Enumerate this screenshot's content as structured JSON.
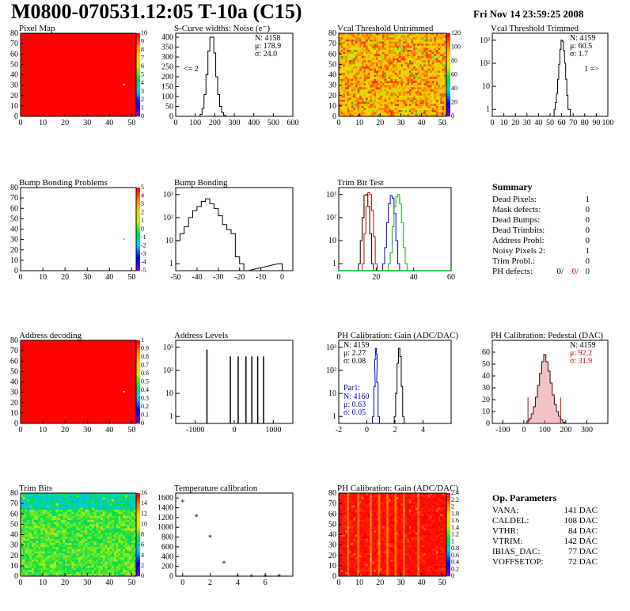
{
  "header": {
    "title": "M0800-070531.12:05 T-10a (C15)",
    "date": "Fri Nov 14 23:59:25 2008"
  },
  "colors": {
    "black": "#000000",
    "red": "#cc0000",
    "blue": "#0000cc",
    "green": "#00bb00",
    "map_red": "#ff0000",
    "bar_bg": "#ffffff"
  },
  "chart_data": [
    {
      "id": "pixel-map",
      "type": "heatmap",
      "title": "Pixel Map",
      "xlim": [
        0,
        52
      ],
      "ylim": [
        0,
        80
      ],
      "xticks": [
        "0",
        "10",
        "20",
        "30",
        "40",
        "50"
      ],
      "yticks": [
        "0",
        "10",
        "20",
        "30",
        "40",
        "50",
        "60",
        "70",
        "80"
      ],
      "fill": "uniform-red",
      "marks": [
        {
          "x": 46,
          "y": 31
        }
      ],
      "colorbar": [
        "0",
        "1",
        "2",
        "3",
        "4",
        "5",
        "6",
        "7",
        "8",
        "9",
        "10"
      ]
    },
    {
      "id": "scurve-noise",
      "type": "line",
      "title": "S-Curve widths: Noise (e⁻)",
      "xlim": [
        0,
        600
      ],
      "ylim": [
        0,
        420
      ],
      "xticks": [
        "0",
        "100",
        "200",
        "300",
        "400",
        "500",
        "600"
      ],
      "yticks": [
        "0",
        "50",
        "100",
        "150",
        "200",
        "250",
        "300",
        "350",
        "400"
      ],
      "stats": {
        "N": "4158",
        "mean": "178.9",
        "sigma": "24.0"
      },
      "annotation": "<= 2",
      "x": [
        120,
        130,
        140,
        150,
        160,
        170,
        180,
        190,
        200,
        210,
        220,
        230,
        240,
        250,
        260
      ],
      "y": [
        0,
        10,
        40,
        110,
        210,
        330,
        400,
        400,
        320,
        200,
        110,
        50,
        20,
        5,
        0
      ]
    },
    {
      "id": "vcal-untrimmed",
      "type": "heatmap",
      "title": "Vcal Threshold Untrimmed",
      "xlim": [
        0,
        52
      ],
      "ylim": [
        0,
        80
      ],
      "xticks": [
        "0",
        "10",
        "20",
        "30",
        "40",
        "50"
      ],
      "yticks": [
        "0",
        "10",
        "20",
        "30",
        "40",
        "50",
        "60",
        "70",
        "80"
      ],
      "fill": "noise-orange",
      "colorbar": [
        "0",
        "20",
        "40",
        "60",
        "80",
        "100",
        "120"
      ]
    },
    {
      "id": "vcal-trimmed",
      "type": "line",
      "title": "Vcal Threshold Trimmed",
      "xlim": [
        0,
        100
      ],
      "ylim_log": [
        0.5,
        2000
      ],
      "log_y": true,
      "xticks": [
        "0",
        "10",
        "20",
        "30",
        "40",
        "50",
        "60",
        "70",
        "80",
        "90",
        "100"
      ],
      "stats": {
        "N": "4159",
        "mean": "60.5",
        "sigma": "1.7"
      },
      "annotation": "1 =>",
      "x": [
        54,
        55,
        56,
        57,
        58,
        59,
        60,
        61,
        62,
        63,
        64,
        65,
        66,
        67
      ],
      "y": [
        1,
        2,
        5,
        20,
        90,
        400,
        1000,
        900,
        350,
        100,
        20,
        4,
        1,
        1
      ]
    },
    {
      "id": "bump-problems",
      "type": "heatmap",
      "title": "Bump Bonding Problems",
      "xlim": [
        0,
        52
      ],
      "ylim": [
        0,
        80
      ],
      "xticks": [
        "0",
        "10",
        "20",
        "30",
        "40",
        "50"
      ],
      "yticks": [
        "0",
        "10",
        "20",
        "30",
        "40",
        "50",
        "60",
        "70",
        "80"
      ],
      "fill": "white",
      "marks": [
        {
          "x": 46,
          "y": 31
        }
      ],
      "colorbar": [
        "-5",
        "-4",
        "-3",
        "-2",
        "-1",
        "0",
        "1",
        "2",
        "3",
        "4",
        "5"
      ]
    },
    {
      "id": "bump-bonding",
      "type": "line",
      "title": "Bump Bonding",
      "xlim": [
        -50,
        5
      ],
      "ylim_log": [
        0.5,
        2000
      ],
      "log_y": true,
      "xticks": [
        "-50",
        "-40",
        "-30",
        "-20",
        "-10",
        "0"
      ],
      "x": [
        -49,
        -47,
        -45,
        -43,
        -41,
        -39,
        -37,
        -35,
        -33,
        -31,
        -29,
        -27,
        -25,
        -23,
        -21,
        -19,
        -17,
        -1
      ],
      "y": [
        10,
        20,
        40,
        100,
        200,
        300,
        500,
        650,
        400,
        250,
        120,
        50,
        30,
        20,
        2,
        1,
        0,
        1
      ]
    },
    {
      "id": "trim-bit-test",
      "type": "line",
      "title": "Trim Bit Test",
      "xlim": [
        0,
        60
      ],
      "ylim_log": [
        0.5,
        2000
      ],
      "log_y": true,
      "xticks": [
        "0",
        "20",
        "40",
        "60"
      ],
      "series": [
        {
          "color": "#000000",
          "x": [
            11,
            12,
            13,
            14,
            15,
            16,
            17,
            18
          ],
          "y": [
            1,
            10,
            100,
            900,
            1000,
            300,
            20,
            1
          ]
        },
        {
          "color": "#cc0000",
          "x": [
            13,
            14,
            15,
            16,
            17,
            18,
            19,
            20
          ],
          "y": [
            1,
            20,
            300,
            1200,
            1000,
            200,
            15,
            1
          ]
        },
        {
          "color": "#0000cc",
          "x": [
            24,
            25,
            26,
            27,
            28,
            29,
            30,
            31,
            32
          ],
          "y": [
            1,
            5,
            60,
            400,
            900,
            700,
            150,
            10,
            1
          ]
        },
        {
          "color": "#00bb00",
          "x": [
            27,
            28,
            29,
            30,
            31,
            32,
            33,
            34,
            35,
            36
          ],
          "y": [
            1,
            3,
            40,
            300,
            800,
            1000,
            400,
            60,
            5,
            1
          ]
        }
      ]
    },
    {
      "id": "address-decoding",
      "type": "heatmap",
      "title": "Address decoding",
      "xlim": [
        0,
        52
      ],
      "ylim": [
        0,
        80
      ],
      "xticks": [
        "0",
        "10",
        "20",
        "30",
        "40",
        "50"
      ],
      "yticks": [
        "0",
        "10",
        "20",
        "30",
        "40",
        "50",
        "60",
        "70",
        "80"
      ],
      "fill": "uniform-red",
      "marks": [
        {
          "x": 46,
          "y": 31
        }
      ],
      "colorbar": [
        "0",
        "0.1",
        "0.2",
        "0.3",
        "0.4",
        "0.5",
        "0.6",
        "0.7",
        "0.8",
        "0.9",
        "1"
      ]
    },
    {
      "id": "address-levels",
      "type": "bar",
      "title": "Address Levels",
      "xlim": [
        -1500,
        1500
      ],
      "ylim_log": [
        0.5,
        2000
      ],
      "log_y": true,
      "xticks": [
        "-1000",
        "0",
        "1000"
      ],
      "x": [
        -700,
        -100,
        100,
        300,
        450,
        600,
        750
      ],
      "y": [
        800,
        400,
        400,
        400,
        400,
        400,
        400
      ]
    },
    {
      "id": "ph-gain",
      "type": "line",
      "title": "PH Calibration: Gain (ADC/DAC)",
      "xlim": [
        -2,
        6
      ],
      "ylim_log": [
        0.5,
        2000
      ],
      "log_y": true,
      "xticks": [
        "-2",
        "0",
        "2",
        "4"
      ],
      "stats": {
        "N": "4159",
        "mean": "2.27",
        "sigma": "0.08"
      },
      "par1": {
        "label": "Par1:",
        "N": "4160",
        "mean": "0.63",
        "sigma": "0.05"
      },
      "series": [
        {
          "color": "#000000",
          "x": [
            2.0,
            2.1,
            2.2,
            2.3,
            2.4,
            2.5,
            2.6
          ],
          "y": [
            1,
            10,
            200,
            900,
            400,
            20,
            1
          ]
        },
        {
          "color": "#0000cc",
          "x": [
            0.45,
            0.55,
            0.6,
            0.65,
            0.7,
            0.75,
            0.85
          ],
          "y": [
            1,
            20,
            300,
            900,
            500,
            30,
            1
          ]
        }
      ]
    },
    {
      "id": "ph-pedestal",
      "type": "line",
      "title": "PH Calibration: Pedestal (DAC)",
      "xlim": [
        -150,
        400
      ],
      "ylim": [
        0,
        70
      ],
      "xticks": [
        "-100",
        "0",
        "100",
        "200",
        "300"
      ],
      "yticks": [
        "0",
        "10",
        "20",
        "30",
        "40",
        "50",
        "60"
      ],
      "stats": {
        "N": "4159",
        "mean": "92.2",
        "sigma": "31.9"
      },
      "x": [
        20,
        30,
        40,
        50,
        60,
        70,
        80,
        90,
        100,
        110,
        120,
        130,
        140,
        150,
        160,
        170,
        180,
        190
      ],
      "y": [
        2,
        4,
        8,
        14,
        22,
        32,
        42,
        52,
        58,
        52,
        44,
        34,
        24,
        16,
        10,
        6,
        3,
        1
      ]
    },
    {
      "id": "trim-bits",
      "type": "heatmap",
      "title": "Trim Bits",
      "xlim": [
        0,
        52
      ],
      "ylim": [
        0,
        80
      ],
      "xticks": [
        "0",
        "10",
        "20",
        "30",
        "40",
        "50"
      ],
      "yticks": [
        "0",
        "10",
        "20",
        "30",
        "40",
        "50",
        "60",
        "70",
        "80"
      ],
      "fill": "noise-green",
      "colorbar": [
        "0",
        "2",
        "4",
        "6",
        "8",
        "10",
        "12",
        "14",
        "16"
      ]
    },
    {
      "id": "temperature-calibration",
      "type": "scatter",
      "title": "Temperature calibration",
      "xlim": [
        -0.5,
        8
      ],
      "ylim": [
        0,
        1700
      ],
      "xticks": [
        "0",
        "2",
        "4",
        "6"
      ],
      "yticks": [
        "0",
        "200",
        "400",
        "600",
        "800",
        "1000",
        "1200",
        "1400",
        "1600"
      ],
      "x": [
        0,
        1,
        2,
        3,
        4,
        5,
        6,
        7
      ],
      "y": [
        1540,
        1240,
        820,
        280,
        10,
        10,
        10,
        20
      ]
    },
    {
      "id": "ph-gain-map",
      "type": "heatmap",
      "title": "PH Calibration: Gain (ADC/DAC)",
      "xlim": [
        0,
        52
      ],
      "ylim": [
        0,
        80
      ],
      "xticks": [
        "0",
        "10",
        "20",
        "30",
        "40",
        "50"
      ],
      "yticks": [
        "0",
        "10",
        "20",
        "30",
        "40",
        "50",
        "60",
        "70",
        "80"
      ],
      "fill": "columns-red",
      "colorbar": [
        "0",
        "0.2",
        "0.4",
        "0.6",
        "0.8",
        "1",
        "1.2",
        "1.4",
        "1.6",
        "1.8",
        "2",
        "2.2",
        "2.4"
      ]
    }
  ],
  "summary": {
    "title": "Summary",
    "rows": [
      {
        "label": "Dead Pixels:",
        "value": "1"
      },
      {
        "label": "Mask defects:",
        "value": "0"
      },
      {
        "label": "Dead Bumps:",
        "value": "0"
      },
      {
        "label": "Dead Trimbits:",
        "value": "0"
      },
      {
        "label": "Address Probl:",
        "value": "0"
      },
      {
        "label": "Noisy Pixels 2:",
        "value": "1"
      },
      {
        "label": "Trim Probl.:",
        "value": "0"
      }
    ],
    "ph_label": "PH defects:",
    "ph_values": [
      "0/",
      "0/",
      "0"
    ]
  },
  "op_params": {
    "title": "Op. Parameters",
    "rows": [
      {
        "label": "VANA:",
        "value": "141 DAC"
      },
      {
        "label": "CALDEL:",
        "value": "108 DAC"
      },
      {
        "label": "VTHR:",
        "value": "84 DAC"
      },
      {
        "label": "VTRIM:",
        "value": "142 DAC"
      },
      {
        "label": "IBIAS_DAC:",
        "value": "77 DAC"
      },
      {
        "label": "VOFFSETOP:",
        "value": "72 DAC"
      }
    ]
  }
}
